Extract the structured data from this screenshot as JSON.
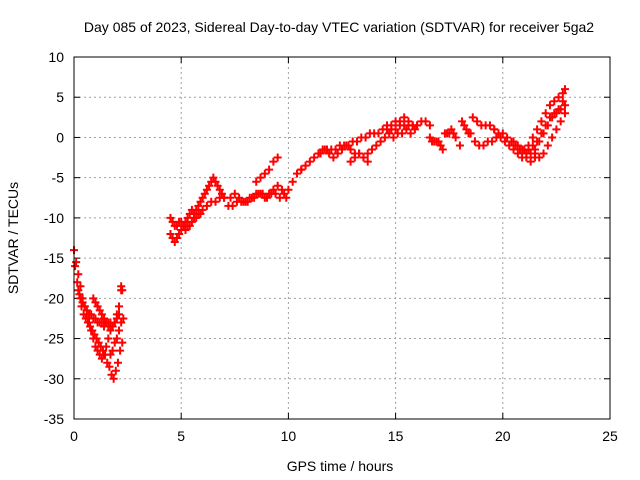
{
  "chart_data": {
    "type": "scatter",
    "title": "Day 085 of 2023, Sidereal Day-to-day VTEC variation (SDTVAR) for receiver 5ga2",
    "xlabel": "GPS time / hours",
    "ylabel": "SDTVAR / TECUs",
    "xlim": [
      0,
      25
    ],
    "ylim": [
      -35,
      10
    ],
    "xticks": [
      0,
      5,
      10,
      15,
      20,
      25
    ],
    "yticks": [
      -35,
      -30,
      -25,
      -20,
      -15,
      -10,
      -5,
      0,
      5,
      10
    ],
    "grid": true,
    "marker": "plus",
    "colors": {
      "series": "#ff0000",
      "grid": "#a0a0a0",
      "axis": "#000000"
    },
    "series": [
      {
        "values_note": "",
        "x": [
          0.0,
          0.1,
          0.2,
          0.3,
          0.4,
          0.5,
          0.6,
          0.7,
          0.8,
          0.9,
          1.0,
          1.1,
          1.2,
          1.3,
          1.4,
          1.5,
          1.6,
          1.7,
          1.8,
          1.9,
          2.0,
          2.1,
          2.2,
          0.05,
          0.15,
          0.25,
          0.35,
          0.45,
          0.55,
          0.65,
          0.75,
          0.85,
          0.95,
          1.05,
          1.15,
          1.25,
          1.35,
          1.45,
          1.55,
          1.65,
          1.75,
          1.85,
          1.95,
          2.05,
          2.15,
          2.25,
          0.2,
          0.3,
          0.4,
          0.5,
          0.6,
          0.7,
          0.8,
          0.9,
          1.0,
          1.1,
          1.2,
          1.3,
          1.4,
          1.5,
          1.6,
          1.7,
          1.8,
          1.9,
          2.0,
          2.1,
          1.7,
          1.8,
          1.9,
          2.0,
          2.1,
          2.2,
          2.3,
          2.2,
          2.25,
          0.9,
          1.0,
          1.1,
          1.2,
          1.3,
          1.4,
          1.5,
          1.6,
          4.5,
          4.6,
          4.7,
          4.8,
          4.9,
          5.0,
          5.1,
          5.2,
          5.3,
          5.4,
          5.5,
          5.6,
          5.7,
          5.8,
          5.9,
          6.0,
          6.1,
          6.2,
          6.3,
          6.4,
          6.5,
          6.6,
          6.7,
          6.8,
          6.9,
          7.0,
          4.5,
          4.6,
          4.7,
          4.8,
          4.9,
          5.0,
          5.1,
          5.2,
          5.3,
          5.4,
          5.5,
          5.6,
          5.7,
          5.8,
          5.9,
          6.0,
          6.2,
          6.4,
          6.6,
          6.8,
          7.0,
          7.2,
          7.4,
          7.6,
          7.8,
          8.0,
          8.2,
          8.4,
          8.6,
          8.8,
          9.0,
          9.2,
          9.4,
          9.6,
          9.8,
          10.0,
          10.2,
          10.4,
          10.6,
          7.3,
          7.5,
          7.7,
          7.9,
          8.1,
          8.3,
          8.5,
          8.7,
          8.9,
          9.1,
          9.3,
          9.5,
          9.7,
          9.9,
          8.5,
          8.7,
          8.9,
          9.1,
          9.3,
          9.5,
          10.6,
          10.8,
          11.0,
          11.2,
          11.4,
          11.6,
          11.8,
          12.0,
          12.2,
          12.4,
          12.6,
          12.8,
          13.0,
          13.2,
          13.4,
          13.6,
          13.8,
          14.0,
          14.2,
          14.4,
          14.6,
          14.8,
          15.0,
          15.2,
          15.4,
          15.6,
          15.8,
          16.0,
          11.5,
          11.7,
          11.9,
          12.1,
          12.3,
          12.5,
          12.7,
          12.9,
          13.1,
          13.3,
          13.5,
          13.7,
          13.9,
          14.1,
          14.3,
          14.5,
          14.7,
          14.9,
          15.1,
          15.3,
          15.5,
          15.7,
          15.9,
          12.9,
          13.1,
          13.3,
          13.5,
          13.7,
          14.6,
          14.8,
          15.0,
          15.2,
          15.4,
          15.6,
          15.8,
          16.0,
          16.2,
          16.4,
          16.6,
          16.6,
          16.7,
          16.8,
          16.9,
          17.0,
          17.1,
          17.2,
          17.3,
          17.4,
          17.5,
          17.6,
          17.7,
          17.8,
          18.0,
          18.1,
          18.2,
          18.3,
          18.4,
          18.5,
          18.6,
          18.8,
          19.0,
          19.2,
          19.4,
          19.6,
          18.7,
          18.9,
          19.1,
          19.3,
          19.5,
          19.7,
          19.9,
          20.1,
          20.3,
          20.5,
          20.7,
          20.9,
          21.1,
          21.3,
          21.5,
          19.6,
          19.8,
          20.0,
          20.2,
          20.4,
          20.6,
          20.8,
          21.0,
          21.2,
          21.4,
          21.6,
          21.8,
          22.0,
          22.2,
          22.4,
          22.6,
          22.8,
          22.9,
          20.5,
          20.7,
          20.9,
          21.1,
          21.3,
          21.5,
          21.7,
          21.9,
          22.1,
          22.3,
          22.5,
          22.7,
          22.9,
          21.0,
          21.2,
          21.4,
          21.6,
          21.8,
          22.0,
          22.2,
          22.4,
          22.6,
          22.8,
          21.5,
          21.7,
          21.9,
          22.1,
          22.3,
          22.5,
          22.7,
          22.9
        ],
        "y": [
          -14.0,
          -15.5,
          -17.0,
          -18.5,
          -20.0,
          -21.0,
          -22.0,
          -23.0,
          -24.0,
          -25.0,
          -26.0,
          -26.5,
          -27.0,
          -27.5,
          -27.0,
          -26.0,
          -25.0,
          -24.0,
          -23.5,
          -23.0,
          -22.0,
          -21.0,
          -19.0,
          -16.0,
          -18.0,
          -19.5,
          -21.0,
          -22.0,
          -22.5,
          -23.0,
          -23.5,
          -24.0,
          -24.5,
          -25.0,
          -25.5,
          -26.0,
          -26.5,
          -27.0,
          -28.0,
          -28.5,
          -29.5,
          -30.0,
          -29.0,
          -28.0,
          -26.5,
          -25.5,
          -19.0,
          -20.0,
          -20.5,
          -21.0,
          -21.5,
          -22.0,
          -22.0,
          -22.5,
          -22.5,
          -23.0,
          -23.0,
          -23.0,
          -23.5,
          -23.0,
          -23.0,
          -23.0,
          -23.5,
          -23.0,
          -22.5,
          -22.0,
          -27.0,
          -26.5,
          -25.5,
          -25.0,
          -24.0,
          -23.0,
          -22.5,
          -18.5,
          -19.0,
          -20.0,
          -20.5,
          -21.0,
          -21.5,
          -22.0,
          -22.5,
          -23.0,
          -23.5,
          -12.0,
          -12.5,
          -13.0,
          -12.5,
          -12.0,
          -11.5,
          -11.0,
          -10.5,
          -10.0,
          -9.5,
          -9.0,
          -9.5,
          -9.0,
          -8.5,
          -8.0,
          -7.5,
          -7.0,
          -6.5,
          -6.0,
          -5.5,
          -5.0,
          -5.5,
          -6.0,
          -6.5,
          -7.0,
          -7.5,
          -10.0,
          -10.5,
          -11.0,
          -11.0,
          -10.5,
          -10.5,
          -11.0,
          -11.5,
          -11.0,
          -11.0,
          -10.5,
          -10.0,
          -10.0,
          -9.5,
          -9.5,
          -9.0,
          -8.5,
          -8.0,
          -8.0,
          -7.5,
          -7.5,
          -8.5,
          -8.5,
          -8.0,
          -8.0,
          -8.0,
          -7.5,
          -7.5,
          -7.0,
          -7.0,
          -7.5,
          -7.0,
          -7.0,
          -7.5,
          -7.0,
          -6.5,
          -5.5,
          -4.5,
          -4.0,
          -7.5,
          -7.0,
          -7.5,
          -8.0,
          -8.0,
          -7.5,
          -7.0,
          -7.0,
          -7.5,
          -7.0,
          -6.5,
          -6.0,
          -6.5,
          -7.5,
          -5.5,
          -5.0,
          -4.5,
          -4.0,
          -3.0,
          -2.5,
          -4.0,
          -3.5,
          -3.0,
          -2.5,
          -2.0,
          -1.5,
          -1.5,
          -1.5,
          -1.5,
          -1.0,
          -1.0,
          -1.0,
          -0.5,
          -0.5,
          0.0,
          0.0,
          0.5,
          0.5,
          0.5,
          1.0,
          1.0,
          1.0,
          1.0,
          1.5,
          1.5,
          1.5,
          1.5,
          1.5,
          -2.0,
          -1.5,
          -2.0,
          -2.5,
          -2.0,
          -1.5,
          -1.0,
          -1.5,
          -2.0,
          -2.0,
          -2.5,
          -2.0,
          -1.5,
          -1.0,
          -0.5,
          0.0,
          0.5,
          0.0,
          0.5,
          0.5,
          1.0,
          0.5,
          1.0,
          -3.0,
          -2.5,
          -2.0,
          -2.5,
          -3.0,
          1.5,
          1.5,
          2.0,
          2.0,
          2.5,
          2.0,
          1.5,
          1.5,
          2.0,
          2.0,
          1.5,
          0.0,
          -0.5,
          -0.5,
          -0.5,
          -0.5,
          -1.0,
          -1.5,
          0.5,
          0.5,
          0.5,
          1.0,
          0.5,
          0.0,
          -1.0,
          2.0,
          1.5,
          1.0,
          0.5,
          0.5,
          2.5,
          2.0,
          1.5,
          1.5,
          1.5,
          1.0,
          -0.5,
          -1.0,
          -1.0,
          -0.5,
          -0.5,
          0.0,
          0.0,
          -0.5,
          -1.0,
          -1.5,
          -2.0,
          -2.5,
          -2.5,
          -3.0,
          -2.5,
          1.0,
          0.5,
          0.5,
          0.0,
          -0.5,
          -1.0,
          -1.5,
          -1.5,
          -1.0,
          0.0,
          1.0,
          2.0,
          3.0,
          4.0,
          4.5,
          5.0,
          5.5,
          6.0,
          -0.5,
          -1.0,
          -1.5,
          -2.0,
          -2.0,
          -1.5,
          -0.5,
          0.5,
          1.5,
          2.5,
          3.0,
          3.5,
          4.0,
          -1.5,
          -1.5,
          -1.0,
          -0.5,
          0.5,
          1.5,
          2.5,
          3.0,
          3.5,
          4.5,
          -2.0,
          -2.5,
          -2.0,
          -1.0,
          0.0,
          1.0,
          2.0,
          3.0
        ]
      }
    ]
  }
}
